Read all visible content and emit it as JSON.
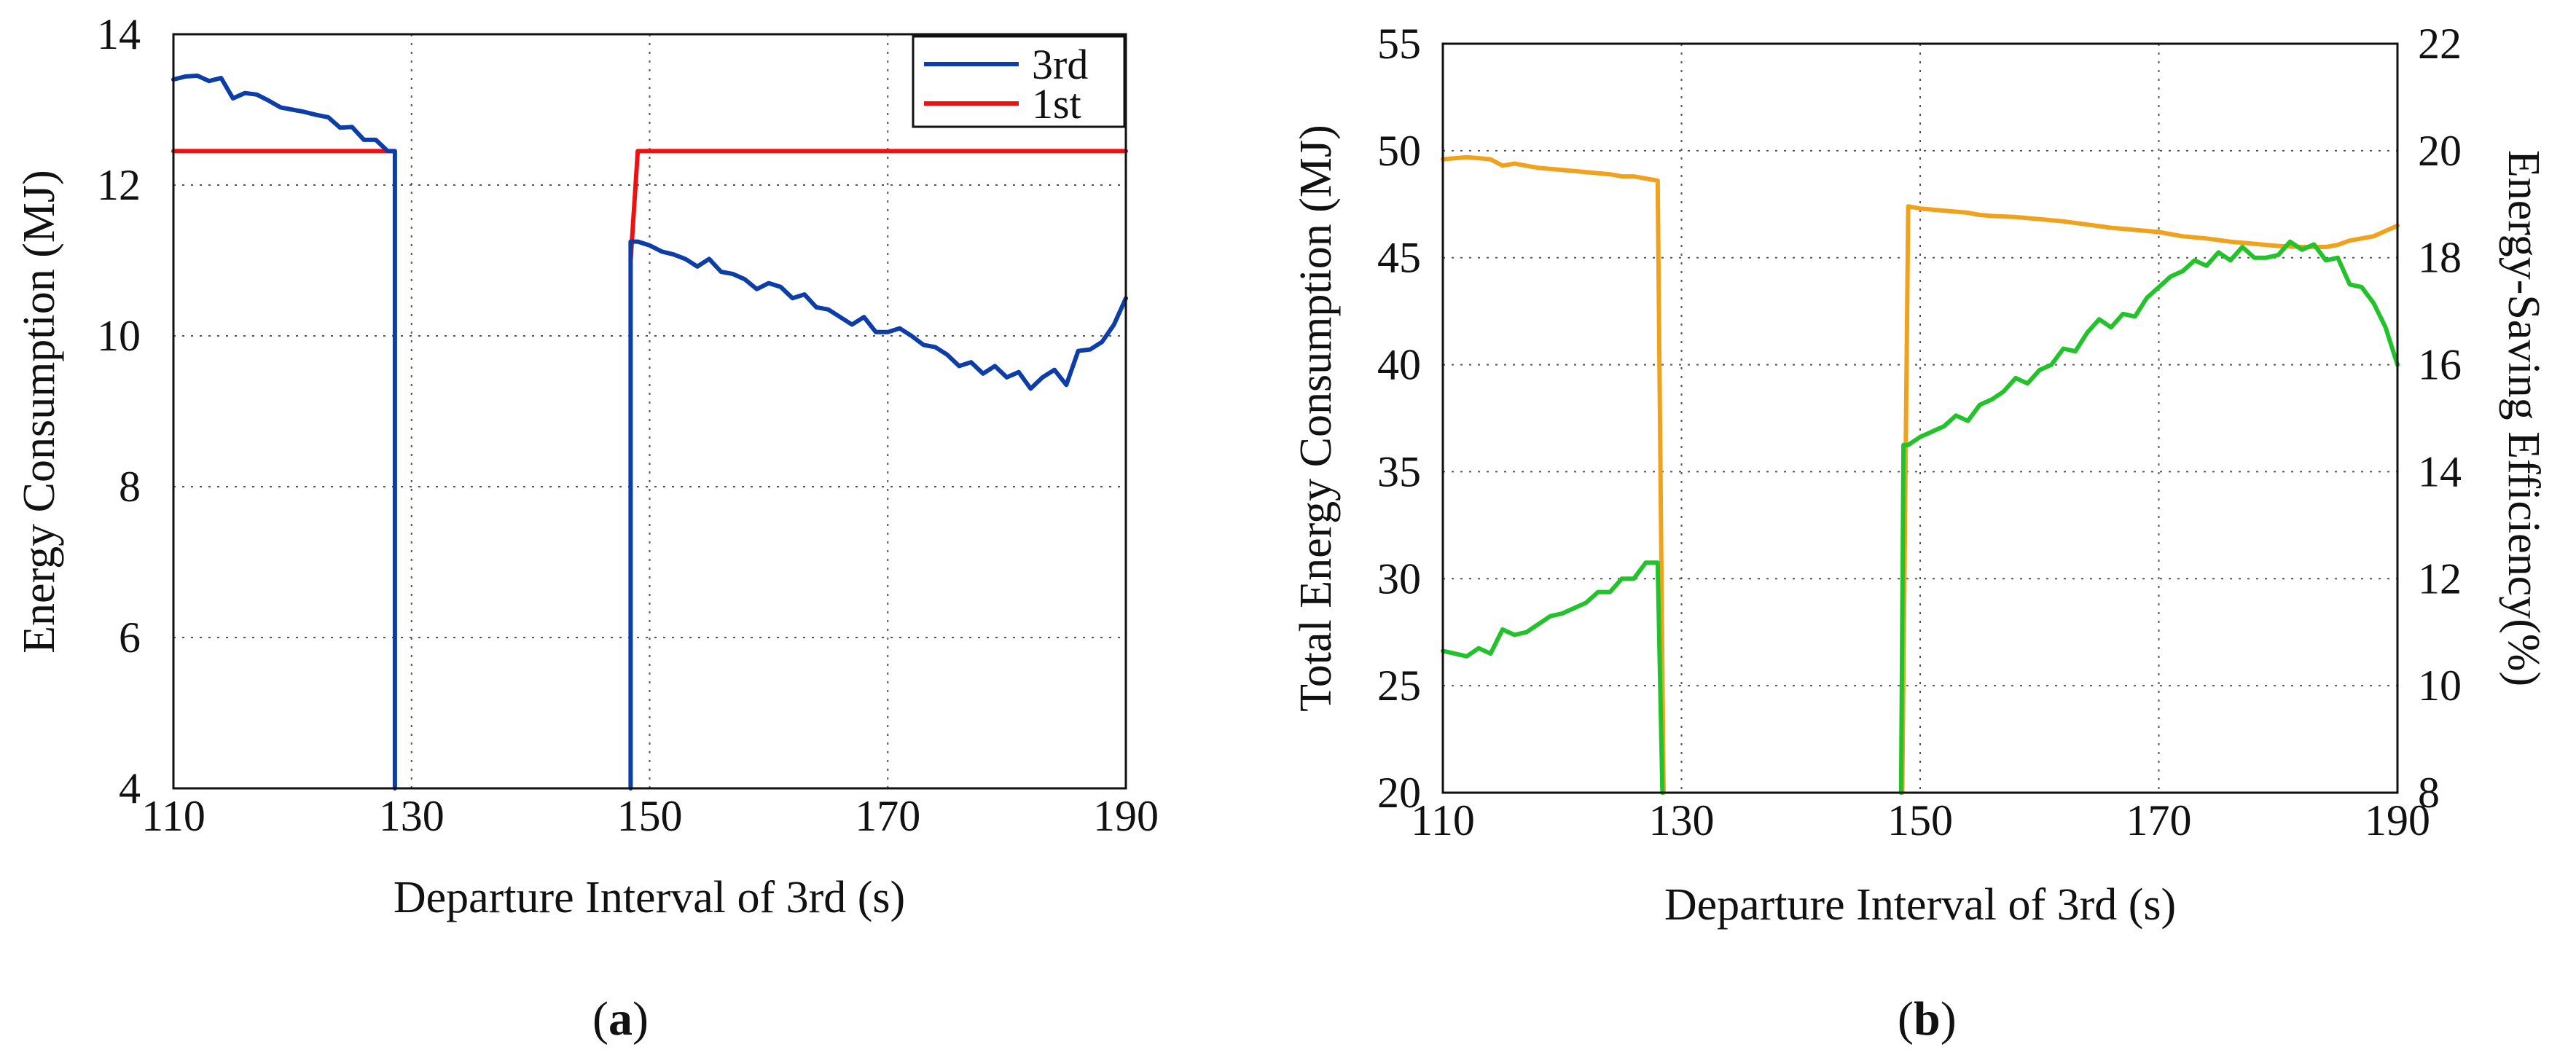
{
  "chart_data": [
    {
      "type": "line",
      "panel": "a",
      "caption": "(a)",
      "xlabel": "Departure Interval of 3rd (s)",
      "ylabel": "Energy Consumption (MJ)",
      "xlim": [
        110,
        190
      ],
      "ylim": [
        4,
        14
      ],
      "xticks": [
        "110",
        "130",
        "150",
        "170",
        "190"
      ],
      "yticks": [
        "4",
        "6",
        "8",
        "10",
        "12",
        "14"
      ],
      "grid": true,
      "legend_position": "top-right",
      "series": [
        {
          "name": "3rd",
          "color": "#0d3ea8",
          "x": [
            110,
            111,
            112,
            113,
            114,
            115,
            116,
            117,
            118,
            119,
            120,
            121,
            122,
            123,
            124,
            125,
            126,
            127,
            128,
            128.6,
            128.6,
            null,
            148.4,
            148.4,
            149,
            150,
            151,
            152,
            153,
            154,
            155,
            156,
            157,
            158,
            159,
            160,
            161,
            162,
            163,
            164,
            165,
            166,
            167,
            168,
            169,
            170,
            171,
            172,
            173,
            174,
            175,
            176,
            177,
            178,
            179,
            180,
            181,
            182,
            183,
            184,
            185,
            186,
            187,
            188,
            189,
            190
          ],
          "y": [
            13.4,
            13.44,
            13.45,
            13.38,
            13.42,
            13.15,
            13.22,
            13.2,
            13.12,
            13.03,
            13.0,
            12.97,
            12.93,
            12.9,
            12.76,
            12.77,
            12.6,
            12.6,
            12.45,
            12.45,
            4,
            null,
            4,
            11.25,
            11.25,
            11.2,
            11.12,
            11.08,
            11.02,
            10.92,
            11.02,
            10.85,
            10.82,
            10.75,
            10.62,
            10.7,
            10.65,
            10.5,
            10.55,
            10.38,
            10.35,
            10.25,
            10.15,
            10.25,
            10.05,
            10.05,
            10.1,
            10.0,
            9.88,
            9.85,
            9.75,
            9.6,
            9.65,
            9.5,
            9.6,
            9.45,
            9.52,
            9.3,
            9.45,
            9.55,
            9.35,
            9.8,
            9.82,
            9.92,
            10.15,
            10.5
          ]
        },
        {
          "name": "1st",
          "color": "#ee1111",
          "x": [
            110,
            128,
            128.6,
            null,
            148.4,
            149,
            190
          ],
          "y": [
            12.45,
            12.45,
            12.45,
            null,
            11.0,
            12.45,
            12.45
          ]
        }
      ]
    },
    {
      "type": "line",
      "panel": "b",
      "caption": "(b)",
      "xlabel": "Departure Interval of 3rd (s)",
      "ylabel_left": "Total Energy Consumption (MJ)",
      "ylabel_right": "Energy-Saving Efficiency(%)",
      "xlim": [
        110,
        190
      ],
      "ylim_left": [
        20,
        55
      ],
      "ylim_right": [
        8,
        22
      ],
      "xticks": [
        "110",
        "130",
        "150",
        "170",
        "190"
      ],
      "yticks_left": [
        "20",
        "25",
        "30",
        "35",
        "40",
        "45",
        "50",
        "55"
      ],
      "yticks_right": [
        "8",
        "10",
        "12",
        "14",
        "16",
        "18",
        "20",
        "22"
      ],
      "grid": true,
      "series": [
        {
          "name": "Total Energy Consumption",
          "axis": "left",
          "color": "#f0a21c",
          "x": [
            110,
            112,
            114,
            115,
            116,
            118,
            120,
            122,
            124,
            125,
            126,
            127,
            128,
            128.5,
            null,
            148.5,
            149,
            150,
            152,
            154,
            155,
            156,
            158,
            160,
            162,
            164,
            166,
            168,
            170,
            172,
            174,
            176,
            178,
            180,
            182,
            184,
            185,
            186,
            188,
            190
          ],
          "y": [
            49.6,
            49.7,
            49.6,
            49.3,
            49.4,
            49.2,
            49.1,
            49.0,
            48.9,
            48.8,
            48.8,
            48.7,
            48.6,
            20,
            null,
            20,
            47.4,
            47.3,
            47.2,
            47.1,
            47.0,
            46.95,
            46.9,
            46.8,
            46.7,
            46.55,
            46.4,
            46.3,
            46.2,
            46.0,
            45.9,
            45.75,
            45.65,
            45.55,
            45.5,
            45.5,
            45.6,
            45.8,
            46.0,
            46.5
          ]
        },
        {
          "name": "Energy-Saving Efficiency",
          "axis": "right",
          "color": "#22c32a",
          "x": [
            110,
            111,
            112,
            113,
            114,
            115,
            116,
            117,
            118,
            119,
            120,
            121,
            122,
            123,
            124,
            125,
            126,
            127,
            128,
            128.4,
            null,
            148.4,
            148.6,
            149,
            150,
            151,
            152,
            153,
            154,
            155,
            156,
            157,
            158,
            159,
            160,
            161,
            162,
            163,
            164,
            165,
            166,
            167,
            168,
            169,
            170,
            171,
            172,
            173,
            174,
            175,
            176,
            177,
            178,
            179,
            180,
            181,
            182,
            183,
            184,
            185,
            186,
            187,
            188,
            189,
            190
          ],
          "y": [
            10.65,
            10.6,
            10.55,
            10.7,
            10.6,
            11.05,
            10.95,
            11.0,
            11.15,
            11.3,
            11.35,
            11.45,
            11.55,
            11.75,
            11.75,
            12.0,
            12.0,
            12.3,
            12.3,
            8,
            null,
            8,
            14.5,
            14.5,
            14.65,
            14.75,
            14.85,
            15.05,
            14.95,
            15.25,
            15.35,
            15.5,
            15.75,
            15.65,
            15.9,
            16.0,
            16.3,
            16.25,
            16.6,
            16.85,
            16.7,
            16.95,
            16.9,
            17.25,
            17.45,
            17.65,
            17.75,
            17.95,
            17.85,
            18.1,
            17.95,
            18.2,
            18.0,
            18.0,
            18.05,
            18.3,
            18.15,
            18.25,
            17.95,
            18.0,
            17.5,
            17.45,
            17.15,
            16.7,
            16.0
          ]
        }
      ]
    }
  ]
}
